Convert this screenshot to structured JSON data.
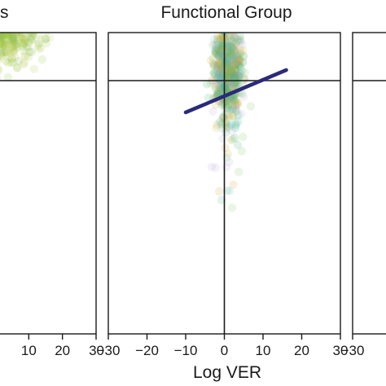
{
  "chart_data": {
    "type": "scatter",
    "xlabel": "Log VER",
    "panels": [
      {
        "title": "s",
        "xlim": [
          -30,
          30
        ],
        "xticks": [
          "10",
          "20",
          "30"
        ],
        "trend_line": {
          "x": [
            -30,
            30
          ],
          "y": [
            0.6,
            1.0
          ]
        },
        "point_cloud": {
          "x_center": 4,
          "x_spread": 8,
          "y_center": 0.5,
          "y_spread": 0.4,
          "colors": [
            "#8fbf3a",
            "#a7c63d",
            "#6fb24c",
            "#c5cf55",
            "#9ec43f"
          ]
        }
      },
      {
        "title": "Functional Group",
        "xlim": [
          -30,
          30
        ],
        "xticks": [
          "−30",
          "−20",
          "−10",
          "0",
          "10",
          "20",
          "30"
        ],
        "trend_line": {
          "x": [
            -10,
            16
          ],
          "y": [
            -0.3,
            0.1
          ]
        },
        "point_cloud": {
          "x_center": 1,
          "x_spread": 3,
          "y_center": 0.1,
          "y_spread": 0.5,
          "colors": [
            "#28a88a",
            "#3fb37a",
            "#7cc254",
            "#c6b340",
            "#d59a3a",
            "#b9a7d4",
            "#6fc0b6"
          ]
        }
      },
      {
        "title": "",
        "xlim": [
          -30,
          30
        ],
        "xticks": [
          "−30"
        ],
        "trend_line": null,
        "point_cloud": null
      }
    ],
    "reference_lines": {
      "x": 0,
      "y": 0
    },
    "line_color": "#2b2a7a",
    "grid": false
  }
}
